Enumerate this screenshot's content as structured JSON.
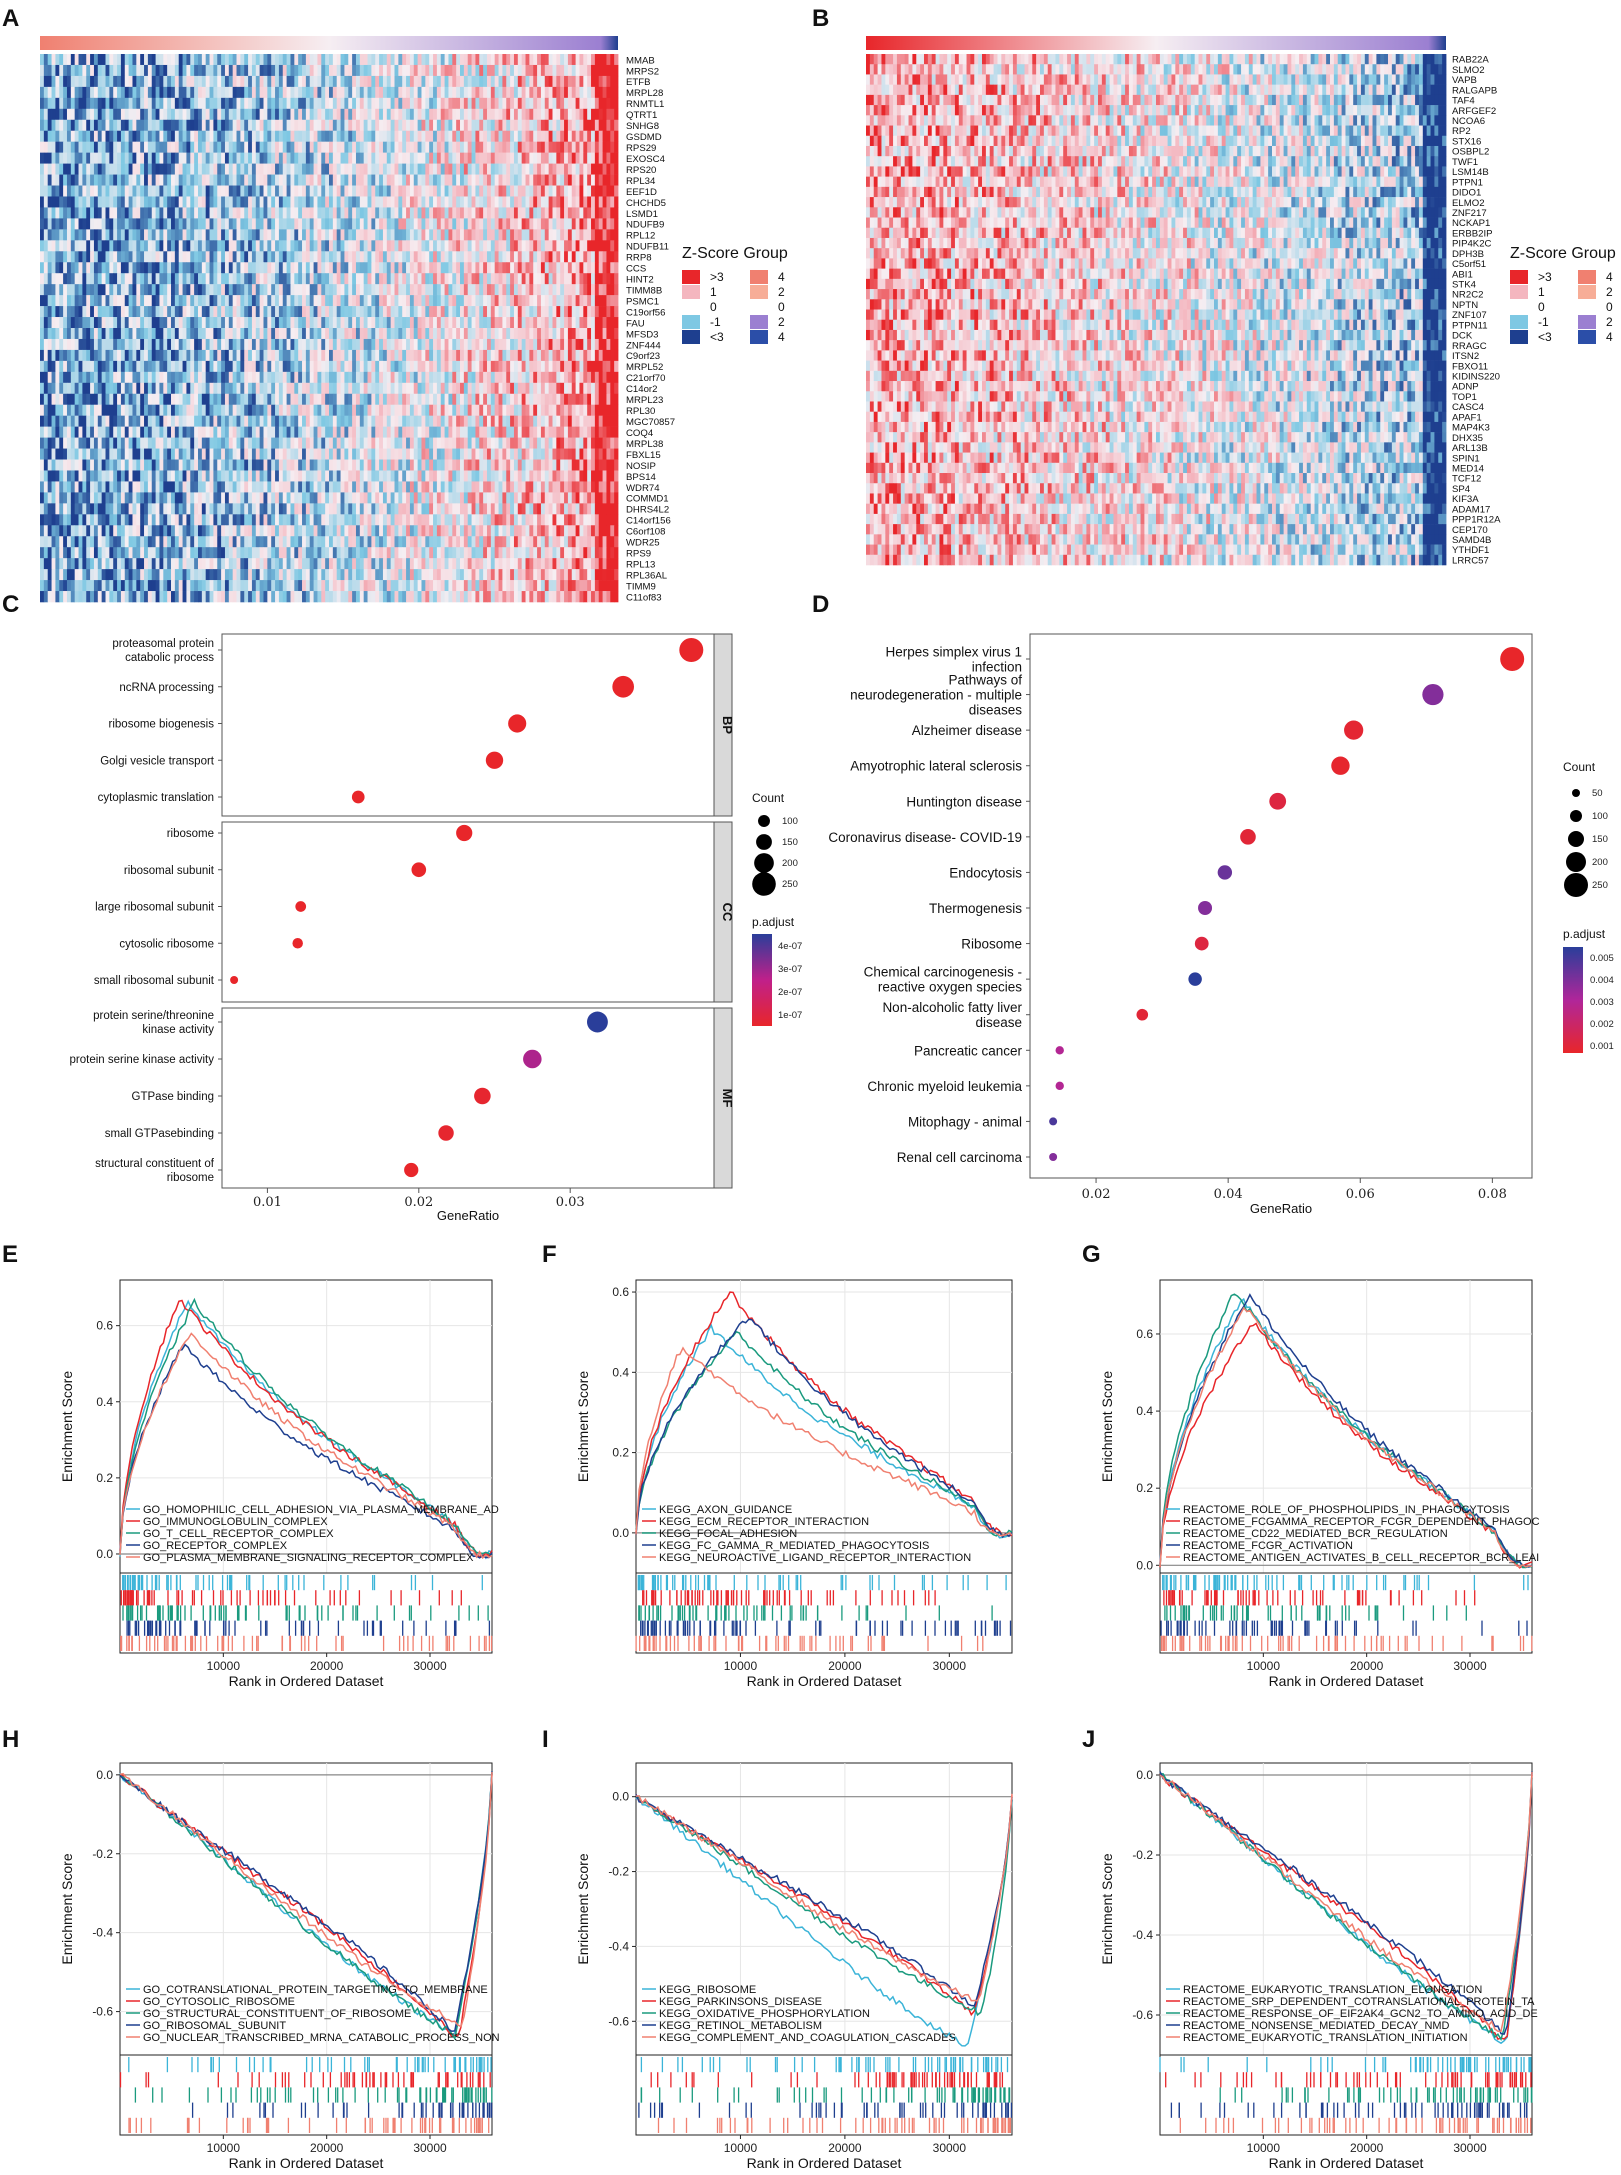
{
  "panel_labels": [
    "A",
    "B",
    "C",
    "D",
    "E",
    "F",
    "G",
    "H",
    "I",
    "J"
  ],
  "colors": {
    "red": "#e8262a",
    "pink": "#f4b6bf",
    "lightblue": "#7ec8e3",
    "blue": "#1e3f8f",
    "salmon": "#f08070",
    "purple": "#9b7fd1",
    "mid": "#f4f0f5"
  },
  "chart_data": [
    {
      "panel": "A",
      "type": "heatmap",
      "genes": [
        "MMAB",
        "MRPS2",
        "ETFB",
        "MRPL28",
        "RNMTL1",
        "QTRT1",
        "SNHG8",
        "GSDMD",
        "RPS29",
        "EXOSC4",
        "RPS20",
        "RPL34",
        "EEF1D",
        "CHCHD5",
        "LSMD1",
        "NDUFB9",
        "RPL12",
        "NDUFB11",
        "RRP8",
        "CCS",
        "HINT2",
        "TIMM8B",
        "PSMC1",
        "C19orf56",
        "FAU",
        "MFSD3",
        "ZNF444",
        "C9orf23",
        "MRPL52",
        "C21orf70",
        "C14or2",
        "MRPL23",
        "RPL30",
        "MGC70857",
        "COQ4",
        "MRPL38",
        "FBXL15",
        "NOSIP",
        "BPS14",
        "WDR74",
        "COMMD1",
        "DHRS4L2",
        "C14orf156",
        "C6orf108",
        "WDR25",
        "RPS9",
        "RPL13",
        "RPL36AL",
        "TIMM9",
        "C11of83"
      ],
      "trend": "increasing"
    },
    {
      "panel": "B",
      "type": "heatmap",
      "genes": [
        "RAB22A",
        "SLMO2",
        "VAPB",
        "RALGAPB",
        "TAF4",
        "ARFGEF2",
        "NCOA6",
        "RP2",
        "STX16",
        "OSBPL2",
        "TWF1",
        "LSM14B",
        "PTPN1",
        "DIDO1",
        "ELMO2",
        "ZNF217",
        "NCKAP1",
        "ERBB2IP",
        "PIP4K2C",
        "DPH3B",
        "C5orf51",
        "ABI1",
        "STK4",
        "NR2C2",
        "NPTN",
        "ZNF107",
        "PTPN11",
        "DCK",
        "RRAGC",
        "ITSN2",
        "FBXO11",
        "KIDINS220",
        "ADNP",
        "TOP1",
        "CASC4",
        "APAF1",
        "MAP4K3",
        "DHX35",
        "ARL13B",
        "SPIN1",
        "MED14",
        "TCF12",
        "SP4",
        "KIF3A",
        "ADAM17",
        "PPP1R12A",
        "CEP170",
        "SAMD4B",
        "YTHDF1",
        "LRRC57"
      ],
      "trend": "decreasing"
    }
  ],
  "zscore_legend": {
    "title": "Z-Score Group",
    "left_items": [
      ">3",
      "1",
      "0",
      "-1",
      "<3"
    ],
    "right_items": [
      "4",
      "2",
      "0",
      "2",
      "4"
    ]
  },
  "panel_c": {
    "type": "scatter",
    "xlabel": "GeneRatio",
    "xlim": [
      0.007,
      0.0395
    ],
    "xticks": [
      "0.01",
      "0.02",
      "0.03"
    ],
    "xtick_values": [
      0.01,
      0.02,
      0.03
    ],
    "groups": [
      {
        "strip": "BP",
        "terms": [
          {
            "label": [
              "proteasomal protein",
              "catabolic process"
            ],
            "x": 0.038,
            "count": 255,
            "padj": 5e-08
          },
          {
            "label": [
              "ncRNA processing"
            ],
            "x": 0.0335,
            "count": 225,
            "padj": 5e-08
          },
          {
            "label": [
              "ribosome biogenesis"
            ],
            "x": 0.0265,
            "count": 180,
            "padj": 5e-08
          },
          {
            "label": [
              "Golgi vesicle transport"
            ],
            "x": 0.025,
            "count": 170,
            "padj": 5e-08
          },
          {
            "label": [
              "cytoplasmic translation"
            ],
            "x": 0.016,
            "count": 110,
            "padj": 5e-08
          }
        ]
      },
      {
        "strip": "CC",
        "terms": [
          {
            "label": [
              "ribosome"
            ],
            "x": 0.023,
            "count": 155,
            "padj": 5e-08
          },
          {
            "label": [
              "ribosomal subunit"
            ],
            "x": 0.02,
            "count": 135,
            "padj": 5e-08
          },
          {
            "label": [
              "large ribosomal subunit"
            ],
            "x": 0.0122,
            "count": 85,
            "padj": 5e-08
          },
          {
            "label": [
              "cytosolic ribosome"
            ],
            "x": 0.012,
            "count": 82,
            "padj": 5e-08
          },
          {
            "label": [
              "small ribosomal subunit"
            ],
            "x": 0.0078,
            "count": 50,
            "padj": 5e-08
          }
        ]
      },
      {
        "strip": "MF",
        "terms": [
          {
            "label": [
              "protein serine/threonine",
              "kinase activity"
            ],
            "x": 0.0318,
            "count": 215,
            "padj": 4.4e-07
          },
          {
            "label": [
              "protein serine kinase activity"
            ],
            "x": 0.0275,
            "count": 185,
            "padj": 2.7e-07
          },
          {
            "label": [
              "GTPase binding"
            ],
            "x": 0.0242,
            "count": 160,
            "padj": 6e-08
          },
          {
            "label": [
              "small GTPasebinding"
            ],
            "x": 0.0218,
            "count": 145,
            "padj": 6e-08
          },
          {
            "label": [
              "structural constituent of",
              "ribosome"
            ],
            "x": 0.0195,
            "count": 130,
            "padj": 5e-08
          }
        ]
      }
    ],
    "count_legend": {
      "title": "Count",
      "values": [
        "100",
        "150",
        "200",
        "250"
      ]
    },
    "padj_legend": {
      "title": "p.adjust",
      "values": [
        "4e-07",
        "3e-07",
        "2e-07",
        "1e-07"
      ]
    }
  },
  "panel_d": {
    "type": "scatter",
    "xlabel": "GeneRatio",
    "xlim": [
      0.01,
      0.086
    ],
    "xticks": [
      "0.02",
      "0.04",
      "0.06",
      "0.08"
    ],
    "xtick_values": [
      0.02,
      0.04,
      0.06,
      0.08
    ],
    "terms": [
      {
        "label": [
          "Herpes simplex virus 1",
          "infection"
        ],
        "x": 0.083,
        "count": 250,
        "padj": 0.0003
      },
      {
        "label": [
          "Pathways of",
          "neurodegeneration - multiple",
          "diseases"
        ],
        "x": 0.071,
        "count": 215,
        "padj": 0.0037
      },
      {
        "label": [
          "Alzheimer disease"
        ],
        "x": 0.059,
        "count": 190,
        "padj": 0.0005
      },
      {
        "label": [
          "Amyotrophic lateral sclerosis"
        ],
        "x": 0.057,
        "count": 180,
        "padj": 0.0004
      },
      {
        "label": [
          "Huntington disease"
        ],
        "x": 0.0475,
        "count": 160,
        "padj": 0.0008
      },
      {
        "label": [
          "Coronavirus disease- COVID-19"
        ],
        "x": 0.043,
        "count": 145,
        "padj": 0.0006
      },
      {
        "label": [
          "Endocytosis"
        ],
        "x": 0.0395,
        "count": 130,
        "padj": 0.0042
      },
      {
        "label": [
          "Thermogenesis"
        ],
        "x": 0.0365,
        "count": 125,
        "padj": 0.0037
      },
      {
        "label": [
          "Ribosome"
        ],
        "x": 0.036,
        "count": 122,
        "padj": 0.0008
      },
      {
        "label": [
          "Chemical carcinogenesis -",
          "reactive oxygen species"
        ],
        "x": 0.035,
        "count": 118,
        "padj": 0.0054
      },
      {
        "label": [
          "Non-alcoholic fatty liver",
          "disease"
        ],
        "x": 0.027,
        "count": 95,
        "padj": 0.0006
      },
      {
        "label": [
          "Pancreatic cancer"
        ],
        "x": 0.0145,
        "count": 55,
        "padj": 0.0027
      },
      {
        "label": [
          "Chronic myeloid leukemia"
        ],
        "x": 0.0145,
        "count": 55,
        "padj": 0.0027
      },
      {
        "label": [
          "Mitophagy - animal"
        ],
        "x": 0.0135,
        "count": 50,
        "padj": 0.0048
      },
      {
        "label": [
          "Renal cell carcinoma"
        ],
        "x": 0.0135,
        "count": 50,
        "padj": 0.0037
      }
    ],
    "count_legend": {
      "title": "Count",
      "values": [
        "50",
        "100",
        "150",
        "200",
        "250"
      ]
    },
    "padj_legend": {
      "title": "p.adjust",
      "values": [
        "0.005",
        "0.004",
        "0.003",
        "0.002",
        "0.001"
      ]
    }
  },
  "gsea_common": {
    "ylabel": "Enrichment Score",
    "xlabel": "Rank in Ordered Dataset",
    "xticks": [
      "10000",
      "20000",
      "30000"
    ],
    "xtick_values": [
      10000,
      20000,
      30000
    ],
    "xmax": 36000,
    "series_colors": [
      "#3bb4d8",
      "#e8262a",
      "#1a9a7e",
      "#1e3f8f",
      "#f08070"
    ]
  },
  "gsea": [
    {
      "panel": "E",
      "direction": "up",
      "ylim": [
        -0.05,
        0.72
      ],
      "yticks": [
        "0.0",
        "0.2",
        "0.4",
        "0.6"
      ],
      "ytick_values": [
        0,
        0.2,
        0.4,
        0.6
      ],
      "series": [
        "GO_HOMOPHILIC_CELL_ADHESION_VIA_PLASMA_MEMBRANE_AD",
        "GO_IMMUNOGLOBULIN_COMPLEX",
        "GO_T_CELL_RECEPTOR_COMPLEX",
        "GO_RECEPTOR_COMPLEX",
        "GO_PLASMA_MEMBRANE_SIGNALING_RECEPTOR_COMPLEX"
      ],
      "peaks": [
        0.66,
        0.67,
        0.66,
        0.55,
        0.58
      ],
      "peak_pos": [
        0.18,
        0.16,
        0.2,
        0.17,
        0.19
      ]
    },
    {
      "panel": "F",
      "direction": "up",
      "ylim": [
        -0.1,
        0.63
      ],
      "yticks": [
        "0.0",
        "0.2",
        "0.4",
        "0.6"
      ],
      "ytick_values": [
        0,
        0.2,
        0.4,
        0.6
      ],
      "series": [
        "KEGG_AXON_GUIDANCE",
        "KEGG_ECM_RECEPTOR_INTERACTION",
        "KEGG_FOCAL_ADHESION",
        "KEGG_FC_GAMMA_R_MEDIATED_PHAGOCYTOSIS",
        "KEGG_NEUROACTIVE_LIGAND_RECEPTOR_INTERACTION"
      ],
      "peaks": [
        0.51,
        0.6,
        0.5,
        0.54,
        0.46
      ],
      "peak_pos": [
        0.2,
        0.25,
        0.27,
        0.3,
        0.12
      ]
    },
    {
      "panel": "G",
      "direction": "up",
      "ylim": [
        -0.02,
        0.74
      ],
      "yticks": [
        "0.0",
        "0.2",
        "0.4",
        "0.6"
      ],
      "ytick_values": [
        0,
        0.2,
        0.4,
        0.6
      ],
      "series": [
        "REACTOME_ROLE_OF_PHOSPHOLIPIDS_IN_PHAGOCYTOSIS",
        "REACTOME_FCGAMMA_RECEPTOR_FCGR_DEPENDENT_PHAGOC",
        "REACTOME_CD22_MEDIATED_BCR_REGULATION",
        "REACTOME_FCGR_ACTIVATION",
        "REACTOME_ANTIGEN_ACTIVATES_B_CELL_RECEPTOR_BCR_LEAI"
      ],
      "peaks": [
        0.69,
        0.63,
        0.71,
        0.7,
        0.67
      ],
      "peak_pos": [
        0.22,
        0.25,
        0.2,
        0.24,
        0.23
      ]
    },
    {
      "panel": "H",
      "direction": "down",
      "ylim": [
        -0.71,
        0.03
      ],
      "yticks": [
        "0.0",
        "-0.2",
        "-0.4",
        "-0.6"
      ],
      "ytick_values": [
        0,
        -0.2,
        -0.4,
        -0.6
      ],
      "series": [
        "GO_COTRANSLATIONAL_PROTEIN_TARGETING_TO_MEMBRANE",
        "GO_CYTOSOLIC_RIBOSOME",
        "GO_STRUCTURAL_CONSTITUENT_OF_RIBOSOME",
        "GO_RIBOSOMAL_SUBUNIT",
        "GO_NUCLEAR_TRANSCRIBED_MRNA_CATABOLIC_PROCESS_NON"
      ],
      "peaks": [
        -0.66,
        -0.67,
        -0.66,
        -0.65,
        -0.64
      ],
      "peak_pos": [
        0.9,
        0.91,
        0.9,
        0.9,
        0.92
      ]
    },
    {
      "panel": "I",
      "direction": "down",
      "ylim": [
        -0.69,
        0.09
      ],
      "yticks": [
        "0.0",
        "-0.2",
        "-0.4",
        "-0.6"
      ],
      "ytick_values": [
        0,
        -0.2,
        -0.4,
        -0.6
      ],
      "series": [
        "KEGG_RIBOSOME",
        "KEGG_PARKINSONS_DISEASE",
        "KEGG_OXIDATIVE_PHOSPHORYLATION",
        "KEGG_RETINOL_METABOLISM",
        "KEGG_COMPLEMENT_AND_COAGULATION_CASCADES"
      ],
      "peaks": [
        -0.67,
        -0.58,
        -0.58,
        -0.56,
        -0.55
      ],
      "peak_pos": [
        0.88,
        0.9,
        0.92,
        0.9,
        0.91
      ]
    },
    {
      "panel": "J",
      "direction": "down",
      "ylim": [
        -0.7,
        0.03
      ],
      "yticks": [
        "0.0",
        "-0.2",
        "-0.4",
        "-0.6"
      ],
      "ytick_values": [
        0,
        -0.2,
        -0.4,
        -0.6
      ],
      "series": [
        "REACTOME_EUKARYOTIC_TRANSLATION_ELONGATION",
        "REACTOME_SRP_DEPENDENT_COTRANSLATIONAL_PROTEIN_TA",
        "REACTOME_RESPONSE_OF_EIF2AK4_GCN2_TO_AMINO_ACID_DE",
        "REACTOME_NONSENSE_MEDIATED_DECAY_NMD",
        "REACTOME_EUKARYOTIC_TRANSLATION_INITIATION"
      ],
      "peaks": [
        -0.67,
        -0.67,
        -0.66,
        -0.65,
        -0.64
      ],
      "peak_pos": [
        0.93,
        0.93,
        0.92,
        0.93,
        0.92
      ]
    }
  ]
}
